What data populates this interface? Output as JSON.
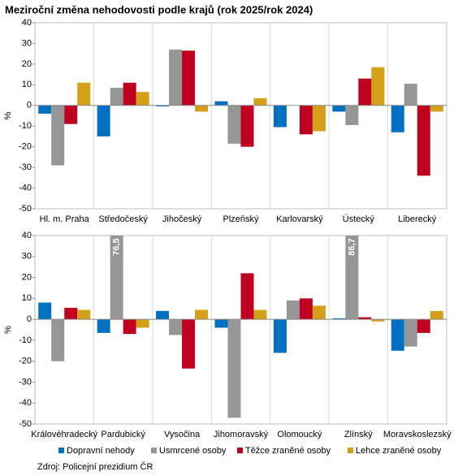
{
  "chart_data": [
    {
      "type": "bar",
      "title": "Meziroční změna nehodovosti podle krajů (rok 2025/rok 2024)",
      "y_label": "%",
      "categories": [
        "Hl. m. Praha",
        "Středočeský",
        "Jihočeský",
        "Plzeňský",
        "Karlovarský",
        "Ústecký",
        "Liberecký"
      ],
      "series": [
        {
          "color": "#0070c0",
          "values": [
            -4,
            -15,
            -0.5,
            2,
            -10.5,
            -3,
            -13
          ]
        },
        {
          "color": "#969696",
          "values": [
            -29,
            8.5,
            27,
            -18.5,
            0,
            -9.5,
            10.5
          ]
        },
        {
          "color": "#c00020",
          "values": [
            -9,
            11,
            26.5,
            -20,
            -14,
            13,
            -34
          ]
        },
        {
          "color": "#d4a017",
          "values": [
            11,
            6.5,
            -3,
            3.5,
            -12.5,
            18.5,
            -3
          ]
        }
      ],
      "ylim": [
        -50,
        40
      ],
      "yticks": [
        -50,
        -40,
        -30,
        -20,
        -10,
        0,
        10,
        20,
        30,
        40
      ]
    },
    {
      "type": "bar",
      "y_label": "%",
      "source": "Zdroj: Policejní prezidium ČR",
      "categories": [
        "Královéhradecký",
        "Pardubický",
        "Vysočina",
        "Jihomoravský",
        "Olomoucký",
        "Zlínský",
        "Moravskoslezský"
      ],
      "series": [
        {
          "name": "Dopravní nehody",
          "color": "#0070c0",
          "values": [
            8,
            -6.5,
            4,
            -4,
            -16,
            0.5,
            -15
          ]
        },
        {
          "name": "Usmrcené osoby",
          "color": "#969696",
          "values": [
            -20,
            76.5,
            -7.5,
            -47,
            9,
            86.7,
            -13
          ],
          "value_labels": [
            null,
            "76,5",
            null,
            null,
            null,
            "86,7",
            null
          ]
        },
        {
          "name": "Těžce zraněné osoby",
          "color": "#c00020",
          "values": [
            5.5,
            -7,
            -23.5,
            22,
            10,
            1,
            -6.5
          ]
        },
        {
          "name": "Lehce zraněné osoby",
          "color": "#d4a017",
          "values": [
            4.5,
            -4,
            4.5,
            4.5,
            6.5,
            -1,
            4
          ]
        }
      ],
      "ylim": [
        -50,
        40
      ],
      "yticks": [
        -50,
        -40,
        -30,
        -20,
        -10,
        0,
        10,
        20,
        30,
        40
      ]
    }
  ]
}
